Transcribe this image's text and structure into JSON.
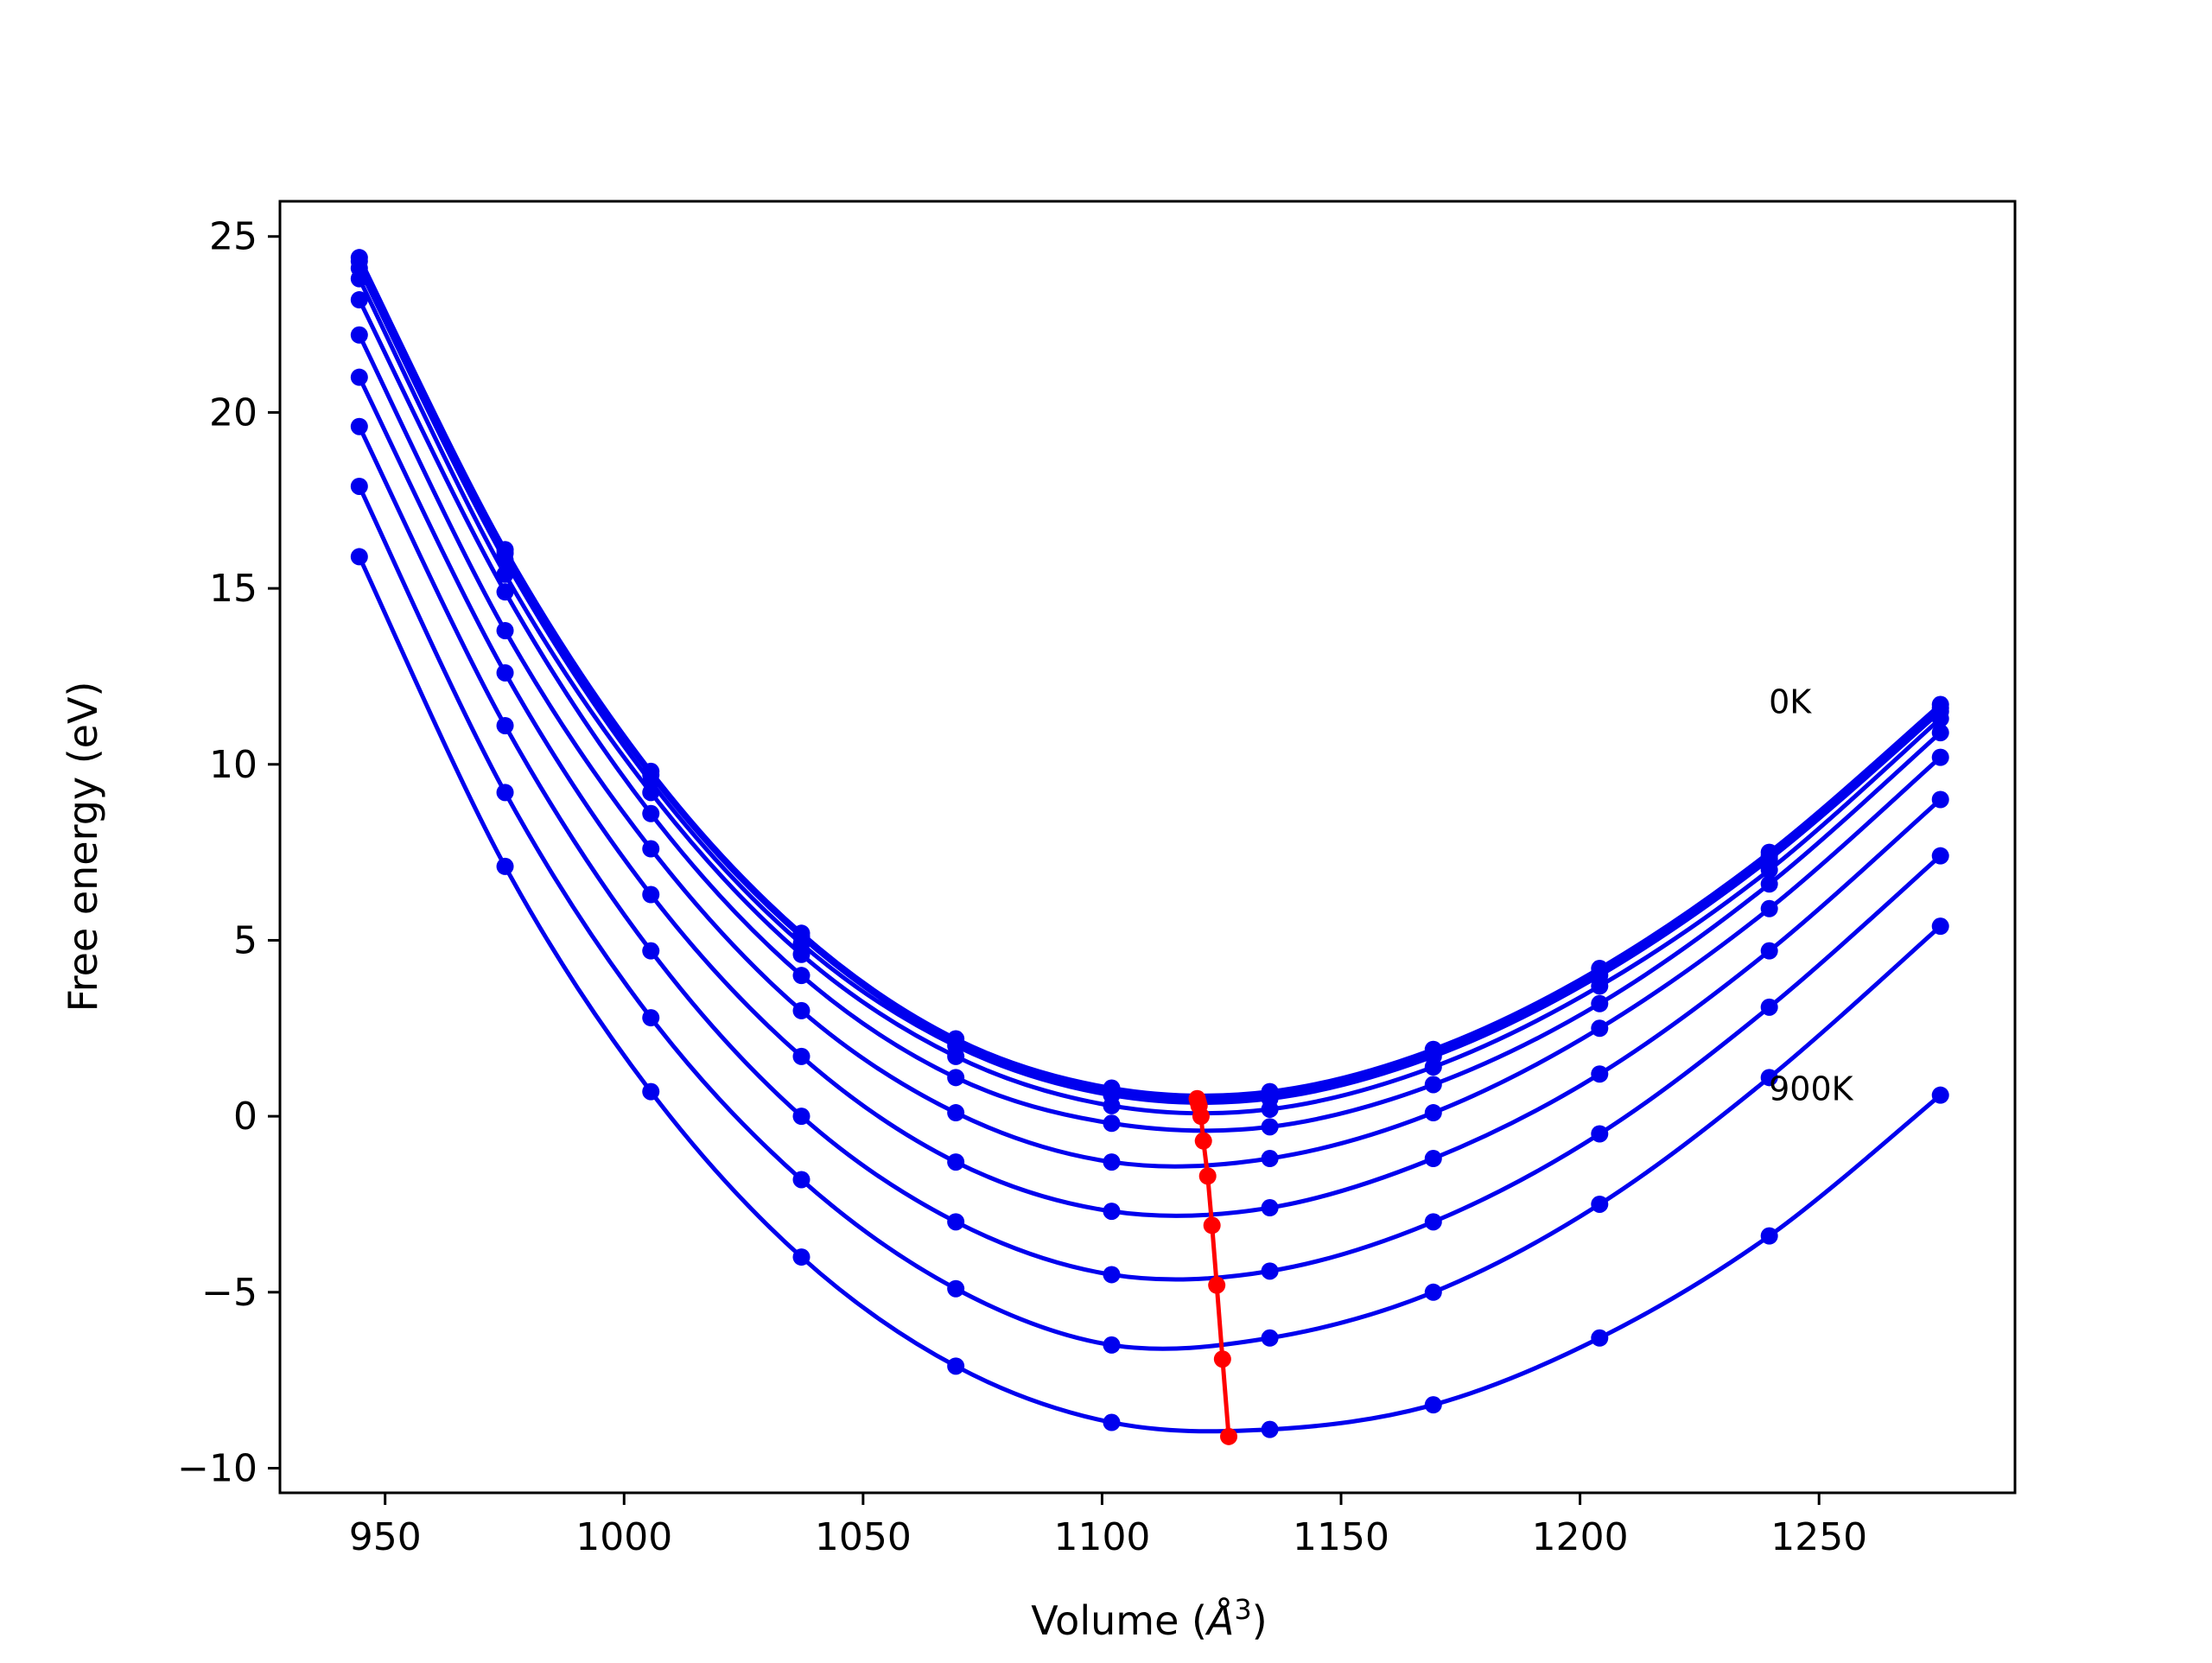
{
  "chart_data": {
    "type": "line",
    "title": "",
    "xlabel": "Volume (",
    "xlabel_unit": "Å",
    "xlabel_sup": "3",
    "xlabel_close": ")",
    "ylabel": "Free energy (eV)",
    "xlim": [
      928,
      1291
    ],
    "ylim": [
      -10.7,
      26.0
    ],
    "grid": false,
    "legend": "none",
    "xticks": [
      950,
      1000,
      1050,
      1100,
      1150,
      1200,
      1250
    ],
    "xtick_labels": [
      "950",
      "1000",
      "1050",
      "1100",
      "1150",
      "1200",
      "1250"
    ],
    "yticks": [
      -10,
      -5,
      0,
      5,
      10,
      15,
      20,
      25
    ],
    "ytick_labels": [
      "−10",
      "−5",
      "0",
      "5",
      "10",
      "15",
      "20",
      "25"
    ],
    "x": [
      944.6,
      975.1,
      1005.6,
      1037.1,
      1069.4,
      1102.0,
      1135.1,
      1169.3,
      1204.1,
      1239.6,
      1275.4
    ],
    "series": [
      {
        "values": [
          24.4,
          16.1,
          9.8,
          5.2,
          2.2,
          0.8,
          0.7,
          1.9,
          4.2,
          7.5,
          11.7
        ]
      },
      {
        "values": [
          24.3,
          16.0,
          9.7,
          5.1,
          2.1,
          0.7,
          0.6,
          1.8,
          4.1,
          7.4,
          11.6
        ]
      },
      {
        "values": [
          24.1,
          15.8,
          9.5,
          4.9,
          2.0,
          0.6,
          0.5,
          1.7,
          4.0,
          7.3,
          11.5
        ]
      },
      {
        "values": [
          23.8,
          15.4,
          9.2,
          4.6,
          1.7,
          0.3,
          0.2,
          1.4,
          3.7,
          7.0,
          11.3
        ]
      },
      {
        "values": [
          23.2,
          14.9,
          8.6,
          4.0,
          1.1,
          -0.2,
          -0.3,
          0.9,
          3.2,
          6.6,
          10.9
        ]
      },
      {
        "values": [
          22.2,
          13.8,
          7.6,
          3.0,
          0.1,
          -1.3,
          -1.2,
          0.1,
          2.5,
          5.9,
          10.2
        ]
      },
      {
        "values": [
          21.0,
          12.6,
          6.3,
          1.7,
          -1.3,
          -2.7,
          -2.6,
          -1.2,
          1.2,
          4.7,
          9.0
        ]
      },
      {
        "values": [
          19.6,
          11.1,
          4.7,
          0.0,
          -3.0,
          -4.5,
          -4.4,
          -3.0,
          -0.5,
          3.1,
          7.4
        ]
      },
      {
        "values": [
          17.9,
          9.2,
          2.8,
          -1.8,
          -4.9,
          -6.5,
          -6.3,
          -5.0,
          -2.5,
          1.1,
          5.4
        ]
      },
      {
        "values": [
          15.9,
          7.1,
          0.7,
          -4.0,
          -7.1,
          -8.7,
          -8.9,
          -8.2,
          -6.3,
          -3.4,
          0.6
        ]
      }
    ],
    "curve_color": "#0000ee",
    "minima": {
      "x": [
        1119.9,
        1120.1,
        1120.3,
        1120.7,
        1121.2,
        1122.1,
        1123.0,
        1124.0,
        1125.2,
        1126.5
      ],
      "y": [
        0.5,
        0.4,
        0.3,
        0.0,
        -0.7,
        -1.7,
        -3.1,
        -4.8,
        -6.9,
        -9.1
      ],
      "color": "#ff0000"
    },
    "annotations": [
      {
        "text": "0K",
        "x": 1239.5,
        "y": 11.8
      },
      {
        "text": "900K",
        "x": 1239.5,
        "y": 0.8
      }
    ]
  }
}
